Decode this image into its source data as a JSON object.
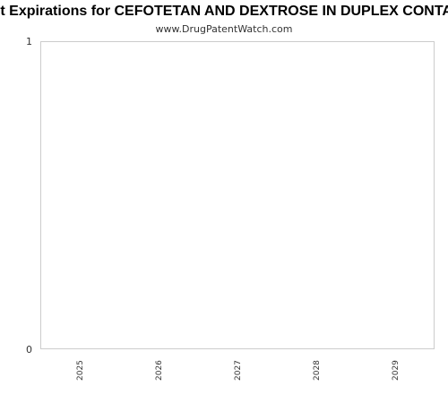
{
  "chart_data": {
    "type": "bar",
    "title": "Patent Expirations for CEFOTETAN AND DEXTROSE IN DUPLEX CONTAINER",
    "subtitle": "www.DrugPatentWatch.com",
    "categories": [
      "2025",
      "2026",
      "2027",
      "2028",
      "2029"
    ],
    "values": [
      0,
      0,
      0,
      0,
      0
    ],
    "y_ticks": [
      "0",
      "1"
    ],
    "ylim": [
      0,
      1
    ],
    "grid": false,
    "legend": "none",
    "colors": {
      "plot_border": "#cccccc",
      "text": "#333333",
      "title": "#000000"
    }
  }
}
